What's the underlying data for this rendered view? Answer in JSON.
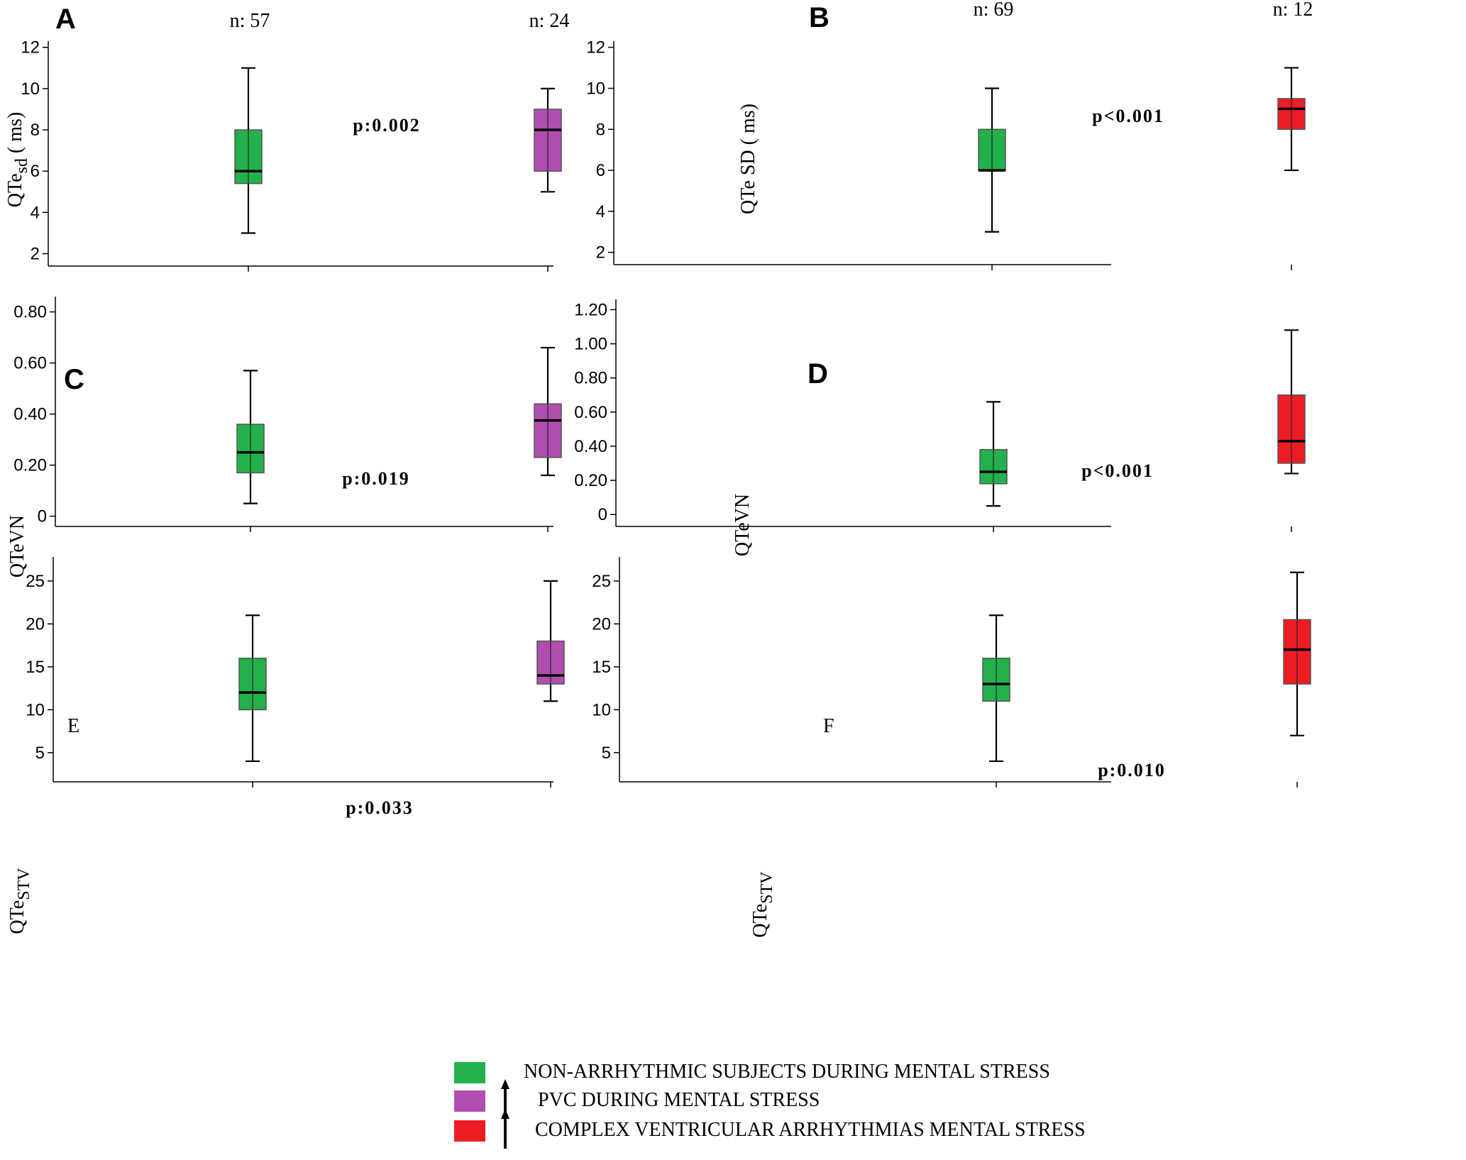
{
  "colors": {
    "non_arrhythmic": "#22b14c",
    "pvc": "#b04faf",
    "complex": "#ed1c24"
  },
  "panels": [
    {
      "id": "A",
      "letter": "A",
      "letter_style": "bold",
      "ylabel": "QTe",
      "ylabel_sub": "sd",
      "ylabel_suffix": "( ms)",
      "yticks": [
        2,
        4,
        6,
        8,
        10,
        12
      ],
      "ytick_labels": [
        "2",
        "4",
        "6",
        "8",
        "10",
        "12"
      ],
      "ylim": [
        1.4,
        12.3
      ],
      "pvalue": "p:0.002",
      "groups": [
        {
          "n_label": "n: 57",
          "color_key": "non_arrhythmic",
          "min": 3,
          "q1": 5.4,
          "median": 6,
          "q3": 8,
          "max": 11
        },
        {
          "n_label": "n: 24",
          "color_key": "pvc",
          "min": 5,
          "q1": 6,
          "median": 8,
          "q3": 9,
          "max": 10
        }
      ]
    },
    {
      "id": "B",
      "letter": "B",
      "letter_style": "bold",
      "ylabel": "QTe SD ( ms)",
      "ylabel_sub": "",
      "ylabel_suffix": "",
      "yticks": [
        2,
        4,
        6,
        8,
        10,
        12
      ],
      "ytick_labels": [
        "2",
        "4",
        "6",
        "8",
        "10",
        "12"
      ],
      "ylim": [
        1.4,
        12.3
      ],
      "pvalue": "p<0.001",
      "groups": [
        {
          "n_label": "n:  69",
          "color_key": "non_arrhythmic",
          "min": 3,
          "q1": 6,
          "median": 6,
          "q3": 8,
          "max": 10
        },
        {
          "n_label": "n: 12",
          "color_key": "complex",
          "min": 6,
          "q1": 8,
          "median": 9,
          "q3": 9.5,
          "max": 11
        }
      ]
    },
    {
      "id": "C",
      "letter": "C",
      "letter_style": "bold",
      "ylabel": "QTeVN",
      "ylabel_sub": "",
      "ylabel_suffix": "",
      "yticks": [
        0,
        0.2,
        0.4,
        0.6,
        0.8
      ],
      "ytick_labels": [
        "0",
        "0.20",
        "0.40",
        "0.60",
        "0.80"
      ],
      "ylim": [
        -0.04,
        0.86
      ],
      "pvalue": "p:0.019",
      "groups": [
        {
          "n_label": "",
          "color_key": "non_arrhythmic",
          "min": 0.05,
          "q1": 0.17,
          "median": 0.25,
          "q3": 0.36,
          "max": 0.57
        },
        {
          "n_label": "",
          "color_key": "pvc",
          "min": 0.16,
          "q1": 0.23,
          "median": 0.375,
          "q3": 0.44,
          "max": 0.66
        }
      ]
    },
    {
      "id": "D",
      "letter": "D",
      "letter_style": "bold",
      "ylabel": "QTeVN",
      "ylabel_sub": "",
      "ylabel_suffix": "",
      "yticks": [
        0,
        0.2,
        0.4,
        0.6,
        0.8,
        1.0,
        1.2
      ],
      "ytick_labels": [
        "0",
        "0.20",
        "0.40",
        "0.60",
        "0.80",
        "1.00",
        "1.20"
      ],
      "ylim": [
        -0.07,
        1.26
      ],
      "pvalue": "p<0.001",
      "groups": [
        {
          "n_label": "",
          "color_key": "non_arrhythmic",
          "min": 0.05,
          "q1": 0.18,
          "median": 0.25,
          "q3": 0.38,
          "max": 0.66
        },
        {
          "n_label": "",
          "color_key": "complex",
          "min": 0.24,
          "q1": 0.3,
          "median": 0.43,
          "q3": 0.7,
          "max": 1.08
        }
      ]
    },
    {
      "id": "E",
      "letter": "E",
      "letter_style": "plain",
      "ylabel": "QTe",
      "ylabel_sub": "STV",
      "ylabel_suffix": "",
      "yticks": [
        5,
        10,
        15,
        20,
        25
      ],
      "ytick_labels": [
        "5",
        "10",
        "15",
        "20",
        "25"
      ],
      "ylim": [
        1.6,
        27.8
      ],
      "pvalue": "p:0.033",
      "groups": [
        {
          "n_label": "",
          "color_key": "non_arrhythmic",
          "min": 4,
          "q1": 10,
          "median": 12,
          "q3": 16,
          "max": 21
        },
        {
          "n_label": "",
          "color_key": "pvc",
          "min": 11,
          "q1": 13,
          "median": 14,
          "q3": 18,
          "max": 25
        }
      ]
    },
    {
      "id": "F",
      "letter": "F",
      "letter_style": "plain",
      "ylabel": "QTe",
      "ylabel_sub": "STV",
      "ylabel_suffix": "",
      "yticks": [
        5,
        10,
        15,
        20,
        25
      ],
      "ytick_labels": [
        "5",
        "10",
        "15",
        "20",
        "25"
      ],
      "ylim": [
        1.6,
        27.8
      ],
      "pvalue": "p:0.010",
      "groups": [
        {
          "n_label": "",
          "color_key": "non_arrhythmic",
          "min": 4,
          "q1": 11,
          "median": 13,
          "q3": 16,
          "max": 21
        },
        {
          "n_label": "",
          "color_key": "complex",
          "min": 7,
          "q1": 13,
          "median": 17,
          "q3": 20.5,
          "max": 26
        }
      ]
    }
  ],
  "legend": [
    {
      "label": "NON-ARRHYTHMIC SUBJECTS  DURING MENTAL STRESS",
      "color_key": "non_arrhythmic",
      "arrow": false
    },
    {
      "label": "PVC DURING MENTAL STRESS",
      "color_key": "pvc",
      "arrow": true
    },
    {
      "label": "COMPLEX VENTRICULAR ARRHYTHMIAS MENTAL STRESS",
      "color_key": "complex",
      "arrow": true
    }
  ],
  "chart_data": [
    {
      "type": "box",
      "panel": "A",
      "title": "",
      "ylabel": "QTe sd ( ms)",
      "categories": [
        "NON-ARRHYTHMIC SUBJECTS  DURING MENTAL STRESS",
        "PVC DURING MENTAL STRESS"
      ],
      "n": [
        "57",
        "24"
      ],
      "series": [
        {
          "name": "NON-ARRHYTHMIC SUBJECTS  DURING MENTAL STRESS",
          "min": 3,
          "q1": 5.4,
          "median": 6,
          "q3": 8,
          "max": 11
        },
        {
          "name": "PVC DURING MENTAL STRESS",
          "min": 5,
          "q1": 6,
          "median": 8,
          "q3": 9,
          "max": 10
        }
      ],
      "ylim": [
        1.4,
        12.3
      ],
      "annotation": "p:0.002"
    },
    {
      "type": "box",
      "panel": "B",
      "title": "",
      "ylabel": "QTe SD ( ms)",
      "categories": [
        "NON-ARRHYTHMIC SUBJECTS  DURING MENTAL STRESS",
        "COMPLEX VENTRICULAR ARRHYTHMIAS MENTAL STRESS"
      ],
      "n": [
        "69",
        "12"
      ],
      "series": [
        {
          "name": "NON-ARRHYTHMIC SUBJECTS  DURING MENTAL STRESS",
          "min": 3,
          "q1": 6,
          "median": 6,
          "q3": 8,
          "max": 10
        },
        {
          "name": "COMPLEX VENTRICULAR ARRHYTHMIAS MENTAL STRESS",
          "min": 6,
          "q1": 8,
          "median": 9,
          "q3": 9.5,
          "max": 11
        }
      ],
      "ylim": [
        1.4,
        12.3
      ],
      "annotation": "p<0.001"
    },
    {
      "type": "box",
      "panel": "C",
      "title": "",
      "ylabel": "QTeVN",
      "categories": [
        "NON-ARRHYTHMIC SUBJECTS  DURING MENTAL STRESS",
        "PVC DURING MENTAL STRESS"
      ],
      "series": [
        {
          "name": "NON-ARRHYTHMIC SUBJECTS  DURING MENTAL STRESS",
          "min": 0.05,
          "q1": 0.17,
          "median": 0.25,
          "q3": 0.36,
          "max": 0.57
        },
        {
          "name": "PVC DURING MENTAL STRESS",
          "min": 0.16,
          "q1": 0.23,
          "median": 0.375,
          "q3": 0.44,
          "max": 0.66
        }
      ],
      "ylim": [
        -0.04,
        0.86
      ],
      "annotation": "p:0.019"
    },
    {
      "type": "box",
      "panel": "D",
      "title": "",
      "ylabel": "QTeVN",
      "categories": [
        "NON-ARRHYTHMIC SUBJECTS  DURING MENTAL STRESS",
        "COMPLEX VENTRICULAR ARRHYTHMIAS MENTAL STRESS"
      ],
      "series": [
        {
          "name": "NON-ARRHYTHMIC SUBJECTS  DURING MENTAL STRESS",
          "min": 0.05,
          "q1": 0.18,
          "median": 0.25,
          "q3": 0.38,
          "max": 0.66
        },
        {
          "name": "COMPLEX VENTRICULAR ARRHYTHMIAS MENTAL STRESS",
          "min": 0.24,
          "q1": 0.3,
          "median": 0.43,
          "q3": 0.7,
          "max": 1.08
        }
      ],
      "ylim": [
        -0.07,
        1.26
      ],
      "annotation": "p<0.001"
    },
    {
      "type": "box",
      "panel": "E",
      "title": "",
      "ylabel": "QTe STV",
      "categories": [
        "NON-ARRHYTHMIC SUBJECTS  DURING MENTAL STRESS",
        "PVC DURING MENTAL STRESS"
      ],
      "series": [
        {
          "name": "NON-ARRHYTHMIC SUBJECTS  DURING MENTAL STRESS",
          "min": 4,
          "q1": 10,
          "median": 12,
          "q3": 16,
          "max": 21
        },
        {
          "name": "PVC DURING MENTAL STRESS",
          "min": 11,
          "q1": 13,
          "median": 14,
          "q3": 18,
          "max": 25
        }
      ],
      "ylim": [
        1.6,
        27.8
      ],
      "annotation": "p:0.033"
    },
    {
      "type": "box",
      "panel": "F",
      "title": "",
      "ylabel": "QTe STV",
      "categories": [
        "NON-ARRHYTHMIC SUBJECTS  DURING MENTAL STRESS",
        "COMPLEX VENTRICULAR ARRHYTHMIAS MENTAL STRESS"
      ],
      "series": [
        {
          "name": "NON-ARRHYTHMIC SUBJECTS  DURING MENTAL STRESS",
          "min": 4,
          "q1": 11,
          "median": 13,
          "q3": 16,
          "max": 21
        },
        {
          "name": "COMPLEX VENTRICULAR ARRHYTHMIAS MENTAL STRESS",
          "min": 7,
          "q1": 13,
          "median": 17,
          "q3": 20.5,
          "max": 26
        }
      ],
      "ylim": [
        1.6,
        27.8
      ],
      "annotation": "p:0.010"
    }
  ]
}
